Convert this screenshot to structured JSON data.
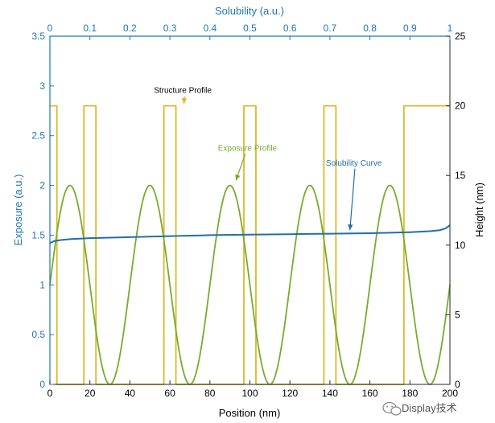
{
  "chart_data": {
    "type": "line",
    "x_axis": {
      "label": "Position (nm)",
      "range": [
        0,
        200
      ],
      "ticks": [
        0,
        20,
        40,
        60,
        80,
        100,
        120,
        140,
        160,
        180,
        200
      ],
      "color": "#000000"
    },
    "x2_axis": {
      "label": "Solubility (a.u.)",
      "range": [
        0,
        1
      ],
      "ticks": [
        0,
        0.1,
        0.2,
        0.3,
        0.4,
        0.5,
        0.6,
        0.7,
        0.8,
        0.9,
        1
      ],
      "color": "#1f77b4"
    },
    "y_axis": {
      "label": "Exposure (a.u.)",
      "range": [
        0,
        3.5
      ],
      "ticks": [
        0,
        0.5,
        1,
        1.5,
        2,
        2.5,
        3,
        3.5
      ],
      "color": "#1f77b4"
    },
    "y2_axis": {
      "label": "Height (nm)",
      "range": [
        0,
        25
      ],
      "ticks": [
        0,
        5,
        10,
        15,
        20,
        25
      ],
      "color": "#000000"
    },
    "grid": false,
    "series": [
      {
        "key": "structure",
        "axis": "y2",
        "color": "#e0b72b",
        "shape": "square_wave",
        "high": 20,
        "low": 0,
        "high_intervals": [
          [
            0,
            3.5
          ],
          [
            17,
            23
          ],
          [
            57,
            63
          ],
          [
            97,
            103
          ],
          [
            137,
            143
          ],
          [
            177,
            200
          ]
        ]
      },
      {
        "key": "exposure",
        "axis": "y",
        "color": "#77ac30",
        "shape": "sinusoid",
        "mean": 1,
        "amplitude": 1,
        "period": 40,
        "peak_at": 10,
        "x": [
          0,
          5,
          10,
          15,
          20,
          25,
          30,
          35,
          40,
          45,
          50,
          55,
          60,
          65,
          70,
          75,
          80,
          85,
          90,
          95,
          100,
          105,
          110,
          115,
          120,
          125,
          130,
          135,
          140,
          145,
          150,
          155,
          160,
          165,
          170,
          175,
          180,
          185,
          190,
          195,
          200
        ],
        "y": [
          1,
          1.71,
          2,
          1.71,
          1,
          0.29,
          0,
          0.29,
          1,
          1.71,
          2,
          1.71,
          1,
          0.29,
          0,
          0.29,
          1,
          1.71,
          2,
          1.71,
          1,
          0.29,
          0,
          0.29,
          1,
          1.71,
          2,
          1.71,
          1,
          0.29,
          0,
          0.29,
          1,
          1.71,
          2,
          1.71,
          1,
          0.29,
          0,
          0.29,
          1
        ]
      },
      {
        "key": "solubility",
        "axis": "y",
        "color": "#1f6fab",
        "shape": "curve",
        "x": [
          0,
          2,
          5,
          10,
          20,
          40,
          60,
          80,
          100,
          120,
          140,
          160,
          180,
          190,
          195,
          198,
          200
        ],
        "y": [
          1.42,
          1.44,
          1.45,
          1.46,
          1.47,
          1.48,
          1.49,
          1.5,
          1.505,
          1.51,
          1.515,
          1.52,
          1.53,
          1.54,
          1.55,
          1.57,
          1.6
        ]
      }
    ],
    "annotations": [
      {
        "key": "structure",
        "text": "Structure Profile",
        "color": "#000000",
        "arrow_color": "#e0b72b",
        "text_at": [
          52,
          2.93
        ],
        "arrow_to": [
          67,
          2.82
        ]
      },
      {
        "key": "exposure",
        "text": "Exposure Profile",
        "color": "#77ac30",
        "arrow_color": "#77ac30",
        "text_at": [
          84,
          2.35
        ],
        "arrow_to": [
          93,
          2.05
        ]
      },
      {
        "key": "solubility",
        "text": "Solubility Curve",
        "color": "#1f6fab",
        "arrow_color": "#1f6fab",
        "text_at": [
          138,
          2.2
        ],
        "arrow_to": [
          150,
          1.55
        ]
      }
    ]
  },
  "watermark": {
    "text": "Display技术",
    "icon": "wechat-logo-icon"
  }
}
